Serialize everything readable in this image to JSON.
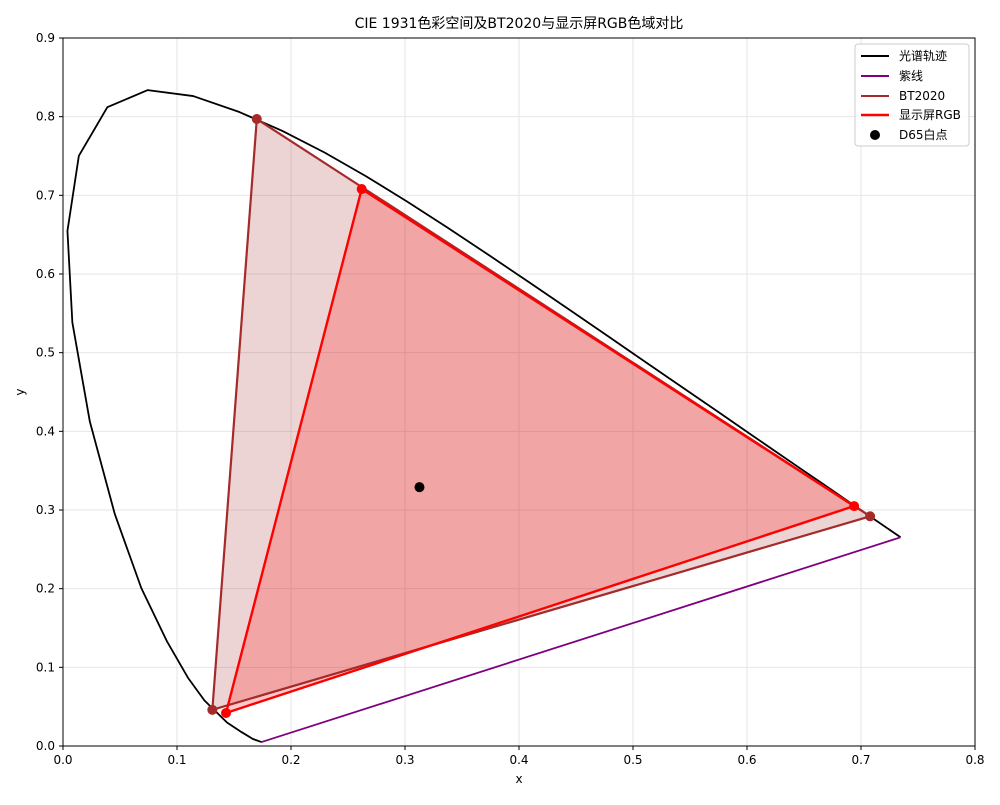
{
  "chart_data": {
    "type": "line",
    "title": "CIE 1931色彩空间及BT2020与显示屏RGB色域对比",
    "xlabel": "x",
    "ylabel": "y",
    "xlim": [
      0,
      0.8
    ],
    "ylim": [
      0,
      0.9
    ],
    "x_ticks": [
      "0.0",
      "0.1",
      "0.2",
      "0.3",
      "0.4",
      "0.5",
      "0.6",
      "0.7",
      "0.8"
    ],
    "y_ticks": [
      "0.0",
      "0.1",
      "0.2",
      "0.3",
      "0.4",
      "0.5",
      "0.6",
      "0.7",
      "0.8",
      "0.9"
    ],
    "grid": true,
    "legend_position": "top-right",
    "legend": [
      "光谱轨迹",
      "紫线",
      "BT2020",
      "显示屏RGB",
      "D65白点"
    ],
    "colors": {
      "spectral_locus": "#000000",
      "purple_line": "#800080",
      "bt2020": "#a52a2a",
      "display_rgb": "#ff0000",
      "white_point": "#000000",
      "grid": "#e6e6e6"
    },
    "series": [
      {
        "name": "光谱轨迹",
        "points": [
          [
            0.1741,
            0.005
          ],
          [
            0.1666,
            0.0089
          ],
          [
            0.1566,
            0.0177
          ],
          [
            0.144,
            0.0297
          ],
          [
            0.1241,
            0.0578
          ],
          [
            0.1096,
            0.0868
          ],
          [
            0.0913,
            0.1327
          ],
          [
            0.0687,
            0.2007
          ],
          [
            0.0454,
            0.295
          ],
          [
            0.0235,
            0.4127
          ],
          [
            0.0082,
            0.5384
          ],
          [
            0.0039,
            0.6548
          ],
          [
            0.0139,
            0.7502
          ],
          [
            0.0389,
            0.812
          ],
          [
            0.0743,
            0.8338
          ],
          [
            0.1142,
            0.8262
          ],
          [
            0.1547,
            0.8059
          ],
          [
            0.1929,
            0.7816
          ],
          [
            0.2296,
            0.7543
          ],
          [
            0.2658,
            0.7243
          ],
          [
            0.3016,
            0.6923
          ],
          [
            0.3373,
            0.6589
          ],
          [
            0.3731,
            0.6245
          ],
          [
            0.4087,
            0.5896
          ],
          [
            0.4441,
            0.5547
          ],
          [
            0.4788,
            0.5202
          ],
          [
            0.5125,
            0.4866
          ],
          [
            0.5448,
            0.4544
          ],
          [
            0.5752,
            0.4242
          ],
          [
            0.6029,
            0.3965
          ],
          [
            0.627,
            0.3725
          ],
          [
            0.6482,
            0.3514
          ],
          [
            0.6658,
            0.334
          ],
          [
            0.6801,
            0.3197
          ],
          [
            0.6915,
            0.3083
          ],
          [
            0.7006,
            0.2993
          ],
          [
            0.714,
            0.2859
          ],
          [
            0.7347,
            0.2653
          ]
        ]
      },
      {
        "name": "紫线",
        "points": [
          [
            0.7347,
            0.2653
          ],
          [
            0.1741,
            0.005
          ]
        ]
      },
      {
        "name": "BT2020",
        "points": [
          [
            0.708,
            0.292
          ],
          [
            0.17,
            0.797
          ],
          [
            0.131,
            0.046
          ]
        ]
      },
      {
        "name": "显示屏RGB",
        "points": [
          [
            0.694,
            0.305
          ],
          [
            0.262,
            0.708
          ],
          [
            0.143,
            0.042
          ]
        ]
      },
      {
        "name": "D65白点",
        "points": [
          [
            0.3127,
            0.329
          ]
        ]
      }
    ]
  }
}
